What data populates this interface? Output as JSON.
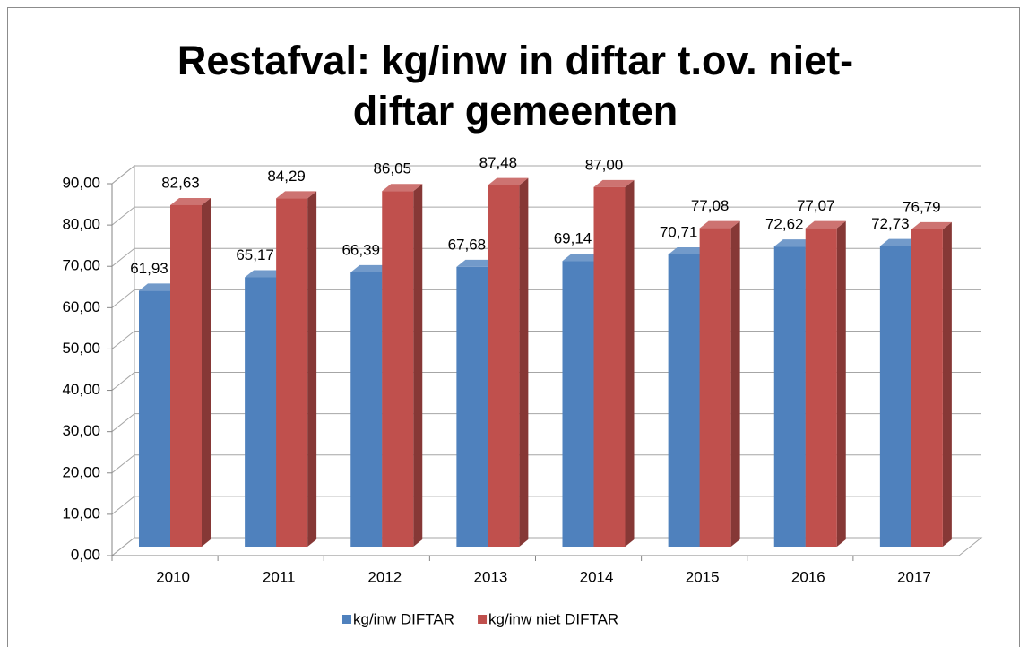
{
  "chart_data": {
    "type": "bar3d",
    "title": "Restafval: kg/inw in diftar t.ov. niet-diftar gemeenten",
    "categories": [
      "2010",
      "2011",
      "2012",
      "2013",
      "2014",
      "2015",
      "2016",
      "2017"
    ],
    "series": [
      {
        "name": "kg/inw DIFTAR",
        "color": "#4f81bd",
        "values": [
          61.93,
          65.17,
          66.39,
          67.68,
          69.14,
          70.71,
          72.62,
          72.73
        ],
        "value_labels": [
          "61,93",
          "65,17",
          "66,39",
          "67,68",
          "69,14",
          "70,71",
          "72,62",
          "72,73"
        ]
      },
      {
        "name": "kg/inw niet DIFTAR",
        "color": "#c0504d",
        "values": [
          82.63,
          84.29,
          86.05,
          87.48,
          87.0,
          77.08,
          77.07,
          76.79
        ],
        "value_labels": [
          "82,63",
          "84,29",
          "86,05",
          "87,48",
          "87,00",
          "77,08",
          "77,07",
          "76,79"
        ]
      }
    ],
    "ylim": [
      0,
      90
    ],
    "yticks": [
      {
        "value": 0,
        "label": "0,00"
      },
      {
        "value": 10,
        "label": "10,00"
      },
      {
        "value": 20,
        "label": "20,00"
      },
      {
        "value": 30,
        "label": "30,00"
      },
      {
        "value": 40,
        "label": "40,00"
      },
      {
        "value": 50,
        "label": "50,00"
      },
      {
        "value": 60,
        "label": "60,00"
      },
      {
        "value": 70,
        "label": "70,00"
      },
      {
        "value": 80,
        "label": "80,00"
      },
      {
        "value": 90,
        "label": "90,00"
      }
    ],
    "grid": true,
    "legend": "bottom"
  }
}
